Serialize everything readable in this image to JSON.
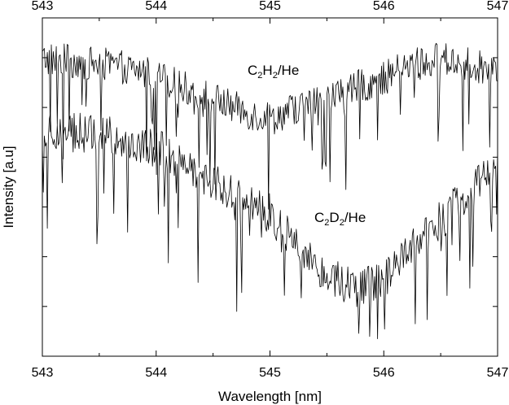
{
  "chart_data": {
    "type": "line",
    "title": "",
    "xlabel": "Wavelength [nm]",
    "ylabel": "Intensity [a.u]",
    "xlim": [
      543,
      547
    ],
    "ylim": [
      0,
      1
    ],
    "x_ticks": [
      "543",
      "544",
      "545",
      "546",
      "547"
    ],
    "y_ticks_labeled": false,
    "grid": false,
    "series": [
      {
        "name": "C2H2/He",
        "label_parts": {
          "a": "C",
          "a_sub": "2",
          "b": "H",
          "b_sub": "2",
          "rest": "/He"
        },
        "color": "#000000",
        "baseline": [
          [
            543.0,
            0.88
          ],
          [
            543.3,
            0.87
          ],
          [
            543.6,
            0.86
          ],
          [
            543.9,
            0.84
          ],
          [
            544.2,
            0.8
          ],
          [
            544.5,
            0.76
          ],
          [
            544.8,
            0.72
          ],
          [
            545.0,
            0.7
          ],
          [
            545.2,
            0.73
          ],
          [
            545.5,
            0.76
          ],
          [
            545.8,
            0.8
          ],
          [
            546.0,
            0.82
          ],
          [
            546.2,
            0.86
          ],
          [
            546.5,
            0.88
          ],
          [
            546.8,
            0.86
          ],
          [
            547.0,
            0.84
          ]
        ],
        "noise": 0.05,
        "dip_depth": 0.28
      },
      {
        "name": "C2D2/He",
        "label_parts": {
          "a": "C",
          "a_sub": "2",
          "b": "D",
          "b_sub": "2",
          "rest": "/He"
        },
        "color": "#000000",
        "baseline": [
          [
            543.0,
            0.68
          ],
          [
            543.3,
            0.66
          ],
          [
            543.6,
            0.65
          ],
          [
            543.9,
            0.63
          ],
          [
            544.2,
            0.58
          ],
          [
            544.5,
            0.52
          ],
          [
            544.8,
            0.46
          ],
          [
            545.0,
            0.42
          ],
          [
            545.2,
            0.35
          ],
          [
            545.5,
            0.24
          ],
          [
            545.8,
            0.2
          ],
          [
            546.0,
            0.22
          ],
          [
            546.2,
            0.3
          ],
          [
            546.5,
            0.4
          ],
          [
            546.8,
            0.5
          ],
          [
            547.0,
            0.56
          ]
        ],
        "noise": 0.06,
        "dip_depth": 0.35
      }
    ],
    "points_per_series": 460,
    "legend": "inline labels"
  }
}
